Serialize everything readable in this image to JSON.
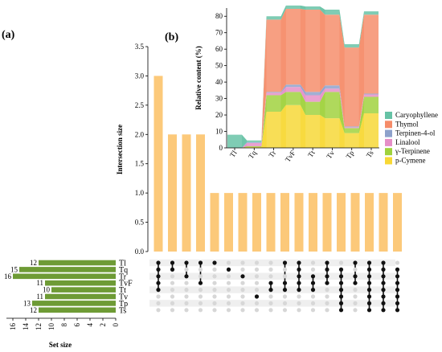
{
  "panel_labels": {
    "a": "(a)",
    "b": "(b)"
  },
  "upset": {
    "sets": [
      "Tl",
      "Tq",
      "Tr",
      "TvF",
      "Tt",
      "Tv",
      "Tp",
      "Ts"
    ],
    "set_size_label": "Set size",
    "set_size_values": [
      12,
      15,
      16,
      11,
      10,
      11,
      13,
      12
    ],
    "set_size_ticks": [
      "16",
      "14",
      "12",
      "10",
      "8",
      "6",
      "4",
      "2",
      "0"
    ],
    "intersection_label": "Intersection size",
    "intersection_ticks": [
      "0.0",
      "0.5",
      "1.0",
      "1.5",
      "2.0",
      "2.5",
      "3.0",
      "3.5"
    ],
    "intersection_values": [
      3,
      2,
      2,
      2,
      1,
      1,
      1,
      1,
      1,
      1,
      1,
      1,
      1,
      1,
      1,
      1,
      1,
      1
    ],
    "matrix_columns": [
      [
        0,
        1,
        2,
        3,
        4
      ],
      [
        0,
        1
      ],
      [
        0,
        2
      ],
      [
        0,
        3
      ],
      [
        0
      ],
      [
        1
      ],
      [
        2
      ],
      [
        5
      ],
      [
        3,
        4
      ],
      [
        0,
        3,
        4
      ],
      [
        0,
        1,
        2,
        3,
        4
      ],
      [
        2,
        3,
        4
      ],
      [
        0,
        1,
        2,
        3
      ],
      [
        1,
        2,
        3,
        4,
        5,
        6,
        7
      ],
      [
        0,
        2,
        3
      ],
      [
        0,
        1,
        2,
        3,
        4,
        5,
        6,
        7
      ],
      [
        0,
        1,
        2,
        3,
        4,
        5,
        6,
        7
      ],
      [
        1,
        2,
        3,
        4,
        5,
        6,
        7
      ]
    ],
    "colors": {
      "bar": "#fcc97a",
      "set_bar": "#6e9b35",
      "dot_on": "#111111",
      "dot_off": "#d7d7d7"
    }
  },
  "chart_data": {
    "type": "area",
    "ylabel": "Relative content (%)",
    "ylim": [
      0,
      85
    ],
    "yticks": [
      0,
      10,
      20,
      30,
      40,
      50,
      60,
      70,
      80
    ],
    "categories": [
      "Tl",
      "Tq",
      "Tr",
      "TvF",
      "Tt",
      "Tv",
      "Tp",
      "Ts"
    ],
    "stacked": true,
    "series": [
      {
        "name": "p-Cymene",
        "color": "#f8d835",
        "values": [
          0,
          0.5,
          22,
          26,
          20,
          18,
          9,
          21
        ]
      },
      {
        "name": "γ-Terpinene",
        "color": "#9fd23c",
        "values": [
          0,
          0.5,
          10,
          8,
          8,
          16,
          3,
          10
        ]
      },
      {
        "name": "Linalool",
        "color": "#e58fc7",
        "values": [
          0,
          2,
          1.5,
          3,
          4,
          2,
          0.5,
          1.5
        ]
      },
      {
        "name": "Terpinen-4-ol",
        "color": "#8da1cb",
        "values": [
          0,
          0.5,
          0.5,
          1.5,
          2,
          2,
          0.5,
          0.5
        ]
      },
      {
        "name": "Thymol",
        "color": "#f58c69",
        "values": [
          0,
          0,
          44,
          46,
          50,
          43,
          48,
          48
        ]
      },
      {
        "name": "Caryophyllene",
        "color": "#66c2a5",
        "values": [
          8,
          1,
          2,
          2,
          2,
          3,
          2,
          2
        ]
      }
    ],
    "legend_position": "right"
  }
}
